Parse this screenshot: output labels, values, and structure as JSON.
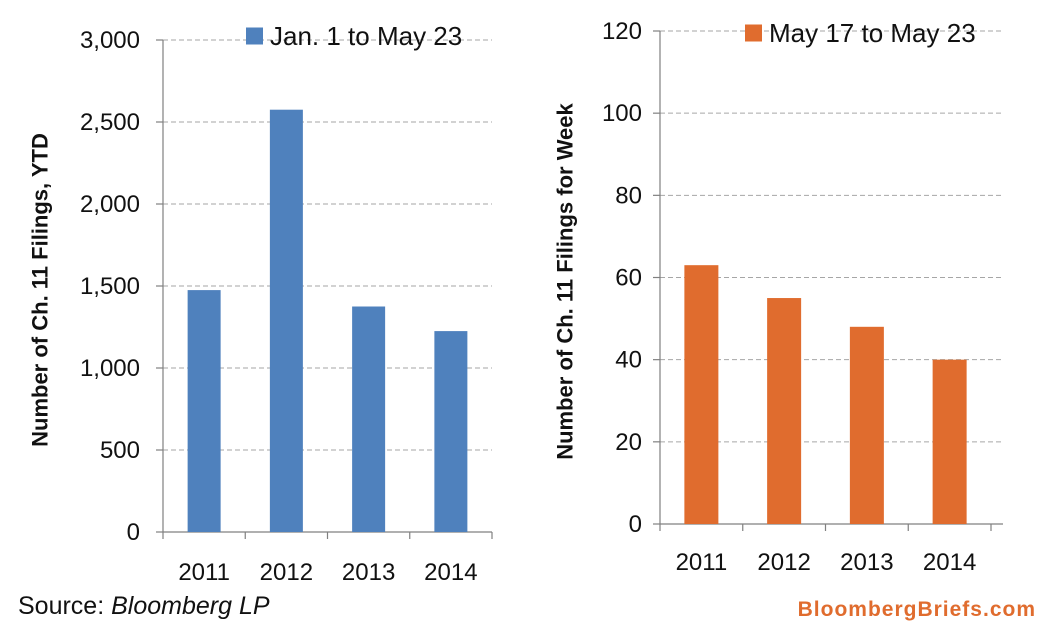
{
  "colors": {
    "left_series": "#4f81bd",
    "right_series": "#e06c2e",
    "grid": "#a6a6a6",
    "brand": "#e06c2e"
  },
  "chart_data": [
    {
      "type": "bar",
      "categories": [
        "2011",
        "2012",
        "2013",
        "2014"
      ],
      "series": [
        {
          "name": "Jan. 1 to May 23",
          "values": [
            1475,
            2575,
            1375,
            1225
          ]
        }
      ],
      "ylabel": "Number of Ch. 11 Filings, YTD",
      "ylim": [
        0,
        3000
      ],
      "yticks": [
        0,
        500,
        1000,
        1500,
        2000,
        2500,
        3000
      ],
      "ytick_labels": [
        "0",
        "500",
        "1,000",
        "1,500",
        "2,000",
        "2,500",
        "3,000"
      ],
      "grid": true,
      "legend_position": "top-right"
    },
    {
      "type": "bar",
      "categories": [
        "2011",
        "2012",
        "2013",
        "2014"
      ],
      "series": [
        {
          "name": "May 17 to May 23",
          "values": [
            63,
            55,
            48,
            40
          ]
        }
      ],
      "ylabel": "Number of Ch. 11 Filings for Week",
      "ylim": [
        0,
        120
      ],
      "yticks": [
        0,
        20,
        40,
        60,
        80,
        100,
        120
      ],
      "ytick_labels": [
        "0",
        "20",
        "40",
        "60",
        "80",
        "100",
        "120"
      ],
      "grid": true,
      "legend_position": "top-right"
    }
  ],
  "footer": {
    "source_prefix": "Source: ",
    "source_name": "Bloomberg LP",
    "brand": "BloombergBriefs.com"
  }
}
